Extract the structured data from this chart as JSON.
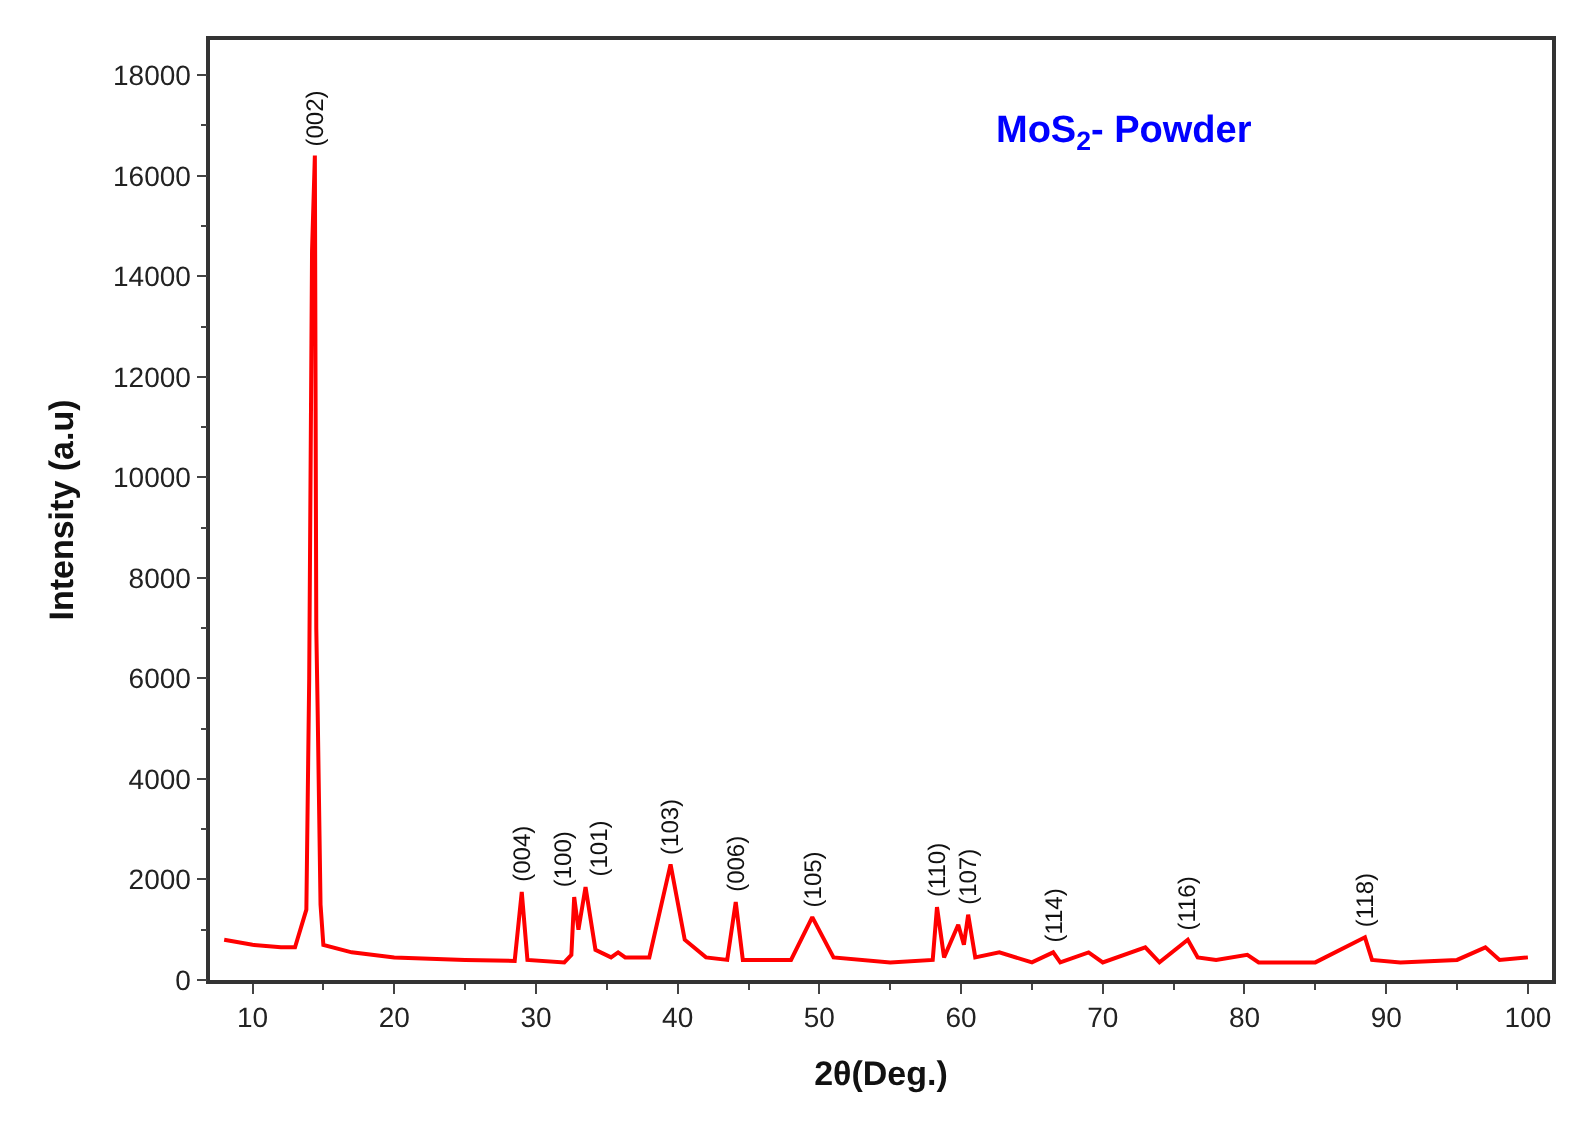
{
  "chart_data": {
    "type": "line",
    "xlabel": "2θ(Deg.)",
    "ylabel": "Intensity (a.u)",
    "annotations": [
      "MoS$_{2}$- Powder",
      {
        "text": "(002)",
        "x": 14.4,
        "y": 16400
      },
      {
        "text": "(004)",
        "x": 29,
        "y": 1750
      },
      {
        "text": "(100)",
        "x": 32.7,
        "y": 1650
      },
      {
        "text": "(101)",
        "x": 33.5,
        "y": 1850
      },
      {
        "text": "(103)",
        "x": 39.5,
        "y": 2300
      },
      {
        "text": "(006)",
        "x": 44.1,
        "y": 1550
      },
      {
        "text": "(105)",
        "x": 49.5,
        "y": 1250
      },
      {
        "text": "(110)",
        "x": 58.3,
        "y": 1450
      },
      {
        "text": "(107)",
        "x": 60.5,
        "y": 1300
      },
      {
        "text": "(114)",
        "x": 66.5,
        "y": 550
      },
      {
        "text": "(116)",
        "x": 76,
        "y": 800
      },
      {
        "text": "(118)",
        "x": 88.5,
        "y": 850
      }
    ],
    "series": [
      {
        "color": "#ff0000",
        "x": [
          8,
          10,
          12,
          13,
          13.8,
          14.0,
          14.2,
          14.4,
          14.5,
          14.6,
          14.8,
          15,
          17,
          20,
          25,
          28.5,
          29,
          29.4,
          32,
          32.5,
          32.7,
          33.0,
          33.5,
          34.2,
          35.3,
          35.8,
          36.3,
          38,
          39.5,
          40.5,
          42,
          43.5,
          44.1,
          44.6,
          48,
          49.5,
          51,
          55,
          58,
          58.3,
          58.8,
          59.8,
          60.2,
          60.5,
          61,
          62.7,
          65,
          66.5,
          67,
          69,
          70,
          73,
          74,
          76,
          76.7,
          78,
          80.2,
          81,
          85,
          88.5,
          89,
          91,
          95,
          97,
          98,
          100
        ],
        "values": [
          800,
          700,
          650,
          650,
          1400,
          6000,
          14500,
          16400,
          7000,
          5300,
          1500,
          700,
          550,
          450,
          400,
          380,
          1750,
          400,
          350,
          500,
          1650,
          1000,
          1850,
          600,
          450,
          550,
          450,
          450,
          2300,
          800,
          450,
          400,
          1550,
          400,
          400,
          1250,
          450,
          350,
          400,
          1450,
          450,
          1100,
          700,
          1300,
          450,
          550,
          350,
          550,
          350,
          550,
          350,
          650,
          350,
          800,
          450,
          400,
          500,
          350,
          350,
          850,
          400,
          350,
          400,
          650,
          400,
          450
        ]
      }
    ],
    "xlim": [
      7,
      101.7
    ],
    "xticks": [
      10,
      20,
      30,
      40,
      50,
      60,
      70,
      80,
      90,
      100
    ],
    "ylim": [
      0,
      18700
    ],
    "yticks": [
      0,
      2000,
      4000,
      6000,
      8000,
      10000,
      12000,
      14000,
      16000,
      18000
    ],
    "marker": "none",
    "line_style": "solid"
  }
}
